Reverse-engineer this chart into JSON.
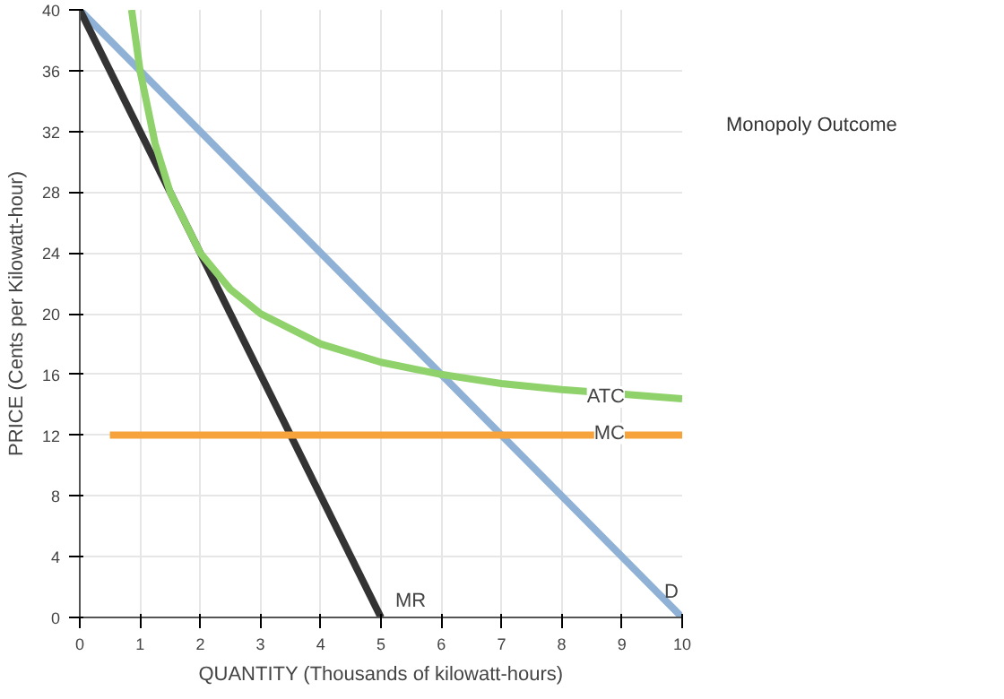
{
  "chart_data": {
    "type": "line",
    "xlabel": "QUANTITY (Thousands of kilowatt-hours)",
    "ylabel": "PRICE (Cents per Kilowatt-hour)",
    "xlim": [
      0,
      10
    ],
    "ylim": [
      0,
      40
    ],
    "xticks": [
      0,
      1,
      2,
      3,
      4,
      5,
      6,
      7,
      8,
      9,
      10
    ],
    "yticks": [
      0,
      4,
      8,
      12,
      16,
      20,
      24,
      28,
      32,
      36,
      40
    ],
    "grid": true,
    "marker": "none",
    "line_style": "solid",
    "annotations": [
      "Monopoly Outcome"
    ],
    "series": [
      {
        "name": "D",
        "color": "#8fb1d6",
        "x": [
          0,
          10
        ],
        "values": [
          40,
          0
        ]
      },
      {
        "name": "MR",
        "color": "#333333",
        "x": [
          0,
          5
        ],
        "values": [
          40,
          0
        ]
      },
      {
        "name": "ATC",
        "color": "#8fd16a",
        "x": [
          0.86,
          1,
          1.25,
          1.5,
          2,
          2.5,
          3,
          4,
          5,
          6,
          7,
          8,
          9,
          10
        ],
        "values": [
          40,
          36,
          31.2,
          28,
          24,
          21.6,
          20,
          18,
          16.8,
          16,
          15.4,
          15,
          14.7,
          14.4
        ]
      },
      {
        "name": "MC",
        "color": "#f5a33a",
        "x": [
          0.5,
          10
        ],
        "values": [
          12,
          12
        ]
      }
    ]
  }
}
